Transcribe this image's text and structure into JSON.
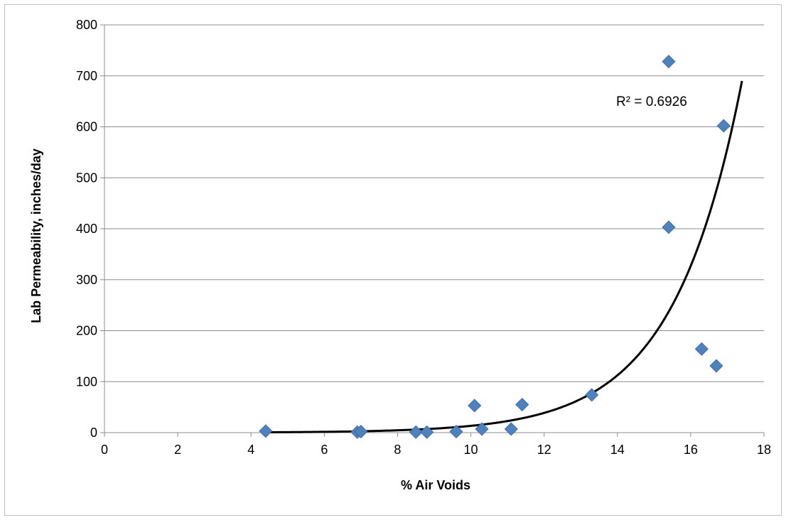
{
  "chart_data": {
    "type": "scatter",
    "xlabel": "% Air Voids",
    "ylabel": "Lab Permeability, inches/day",
    "xlim": [
      0,
      18
    ],
    "ylim": [
      0,
      800
    ],
    "x_ticks": [
      0,
      2,
      4,
      6,
      8,
      10,
      12,
      14,
      16,
      18
    ],
    "y_ticks": [
      0,
      100,
      200,
      300,
      400,
      500,
      600,
      700,
      800
    ],
    "grid": "horizontal",
    "marker_color": "#4f81bd",
    "marker_shape": "diamond",
    "series": [
      {
        "points": [
          [
            4.4,
            3
          ],
          [
            6.9,
            1
          ],
          [
            7.0,
            2
          ],
          [
            8.5,
            1
          ],
          [
            8.8,
            1
          ],
          [
            9.6,
            2
          ],
          [
            10.1,
            53
          ],
          [
            10.3,
            7
          ],
          [
            11.1,
            7
          ],
          [
            11.4,
            55
          ],
          [
            13.3,
            74
          ],
          [
            15.4,
            728
          ],
          [
            15.4,
            403
          ],
          [
            16.3,
            164
          ],
          [
            16.7,
            131
          ],
          [
            16.9,
            602
          ]
        ]
      }
    ],
    "trendline": {
      "type": "exponential",
      "color": "#000000",
      "x_range": [
        4.4,
        17.4
      ],
      "fit_points": [
        [
          4.4,
          0.67
        ],
        [
          6.0,
          0.86
        ],
        [
          8.0,
          2.1
        ],
        [
          10.0,
          6.4
        ],
        [
          12.0,
          19
        ],
        [
          13.0,
          38
        ],
        [
          14.0,
          76
        ],
        [
          15.0,
          155
        ],
        [
          15.5,
          205
        ],
        [
          16.0,
          290
        ],
        [
          16.5,
          420
        ],
        [
          17.0,
          560
        ],
        [
          17.4,
          690
        ]
      ],
      "r_squared_label": "R² = 0.6926"
    }
  }
}
